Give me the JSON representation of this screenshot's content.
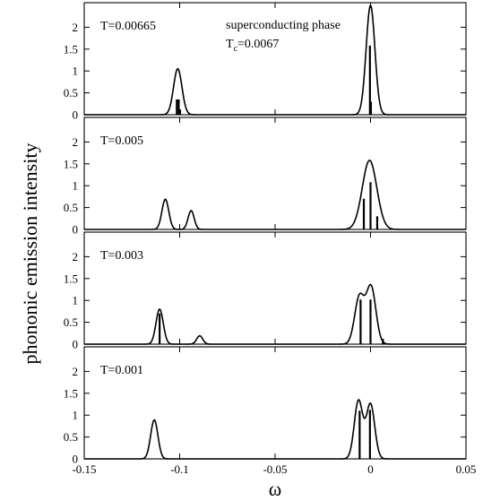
{
  "chart_data": {
    "type": "line",
    "ylabel": "phononic emission intensity",
    "xlabel": "ω",
    "xlim": [
      -0.15,
      0.05
    ],
    "ylim": [
      0,
      2.5
    ],
    "x_ticks": [
      "-0.15",
      "-0.1",
      "-0.05",
      "0",
      "0.05"
    ],
    "y_ticks": [
      "0",
      "0.5",
      "1",
      "1.5",
      "2"
    ],
    "panels": [
      {
        "label": "T=0.00665",
        "annotation_line1": "superconducting phase",
        "annotation_tc_symbol": "T",
        "annotation_tc_subscript": "c",
        "annotation_tc_value": "=0.0067",
        "peaks": [
          {
            "center": -0.101,
            "height": 1.05,
            "width": 0.0022
          },
          {
            "center": 0.0,
            "height": 2.5,
            "width": 0.0023
          }
        ],
        "sticks": [
          {
            "x": -0.1015,
            "y": 0.35
          },
          {
            "x": -0.1005,
            "y": 0.35
          },
          {
            "x": -0.0998,
            "y": 0.12
          },
          {
            "x": -0.0003,
            "y": 1.58
          },
          {
            "x": 0.0002,
            "y": 0.3
          }
        ]
      },
      {
        "label": "T=0.005",
        "peaks": [
          {
            "center": -0.1075,
            "height": 0.69,
            "width": 0.0018
          },
          {
            "center": -0.094,
            "height": 0.43,
            "width": 0.0016
          },
          {
            "center": -0.0005,
            "height": 1.58,
            "width": 0.0038
          }
        ],
        "sticks": [
          {
            "x": -0.0035,
            "y": 0.7
          },
          {
            "x": 0.0,
            "y": 1.08
          },
          {
            "x": 0.0035,
            "y": 0.3
          }
        ]
      },
      {
        "label": "T=0.003",
        "peaks": [
          {
            "center": -0.1105,
            "height": 0.8,
            "width": 0.0019
          },
          {
            "center": -0.0895,
            "height": 0.19,
            "width": 0.0016
          },
          {
            "center": -0.0058,
            "height": 1.08,
            "width": 0.0025
          },
          {
            "center": 0.0003,
            "height": 1.3,
            "width": 0.0025
          }
        ],
        "sticks": [
          {
            "x": -0.1105,
            "y": 0.7
          },
          {
            "x": -0.0052,
            "y": 1.02
          },
          {
            "x": 0.0,
            "y": 1.02
          },
          {
            "x": 0.0065,
            "y": 0.12
          }
        ]
      },
      {
        "label": "T=0.001",
        "peaks": [
          {
            "center": -0.1133,
            "height": 0.89,
            "width": 0.0019
          },
          {
            "center": -0.0063,
            "height": 1.33,
            "width": 0.0022
          },
          {
            "center": 0.0,
            "height": 1.25,
            "width": 0.0022
          }
        ],
        "sticks": [
          {
            "x": -0.0057,
            "y": 1.1
          },
          {
            "x": -0.0003,
            "y": 1.12
          }
        ]
      }
    ]
  }
}
